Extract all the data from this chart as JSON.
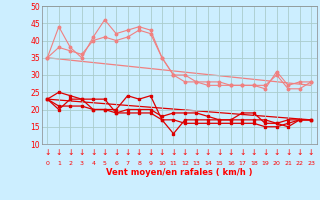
{
  "x": [
    0,
    1,
    2,
    3,
    4,
    5,
    6,
    7,
    8,
    9,
    10,
    11,
    12,
    13,
    14,
    15,
    16,
    17,
    18,
    19,
    20,
    21,
    22,
    23
  ],
  "line1": [
    35,
    44,
    38,
    35,
    41,
    46,
    42,
    43,
    44,
    43,
    35,
    30,
    30,
    28,
    28,
    28,
    27,
    27,
    27,
    26,
    31,
    27,
    28,
    28
  ],
  "line2": [
    35,
    38,
    37,
    36,
    40,
    41,
    40,
    41,
    43,
    42,
    35,
    30,
    28,
    28,
    27,
    27,
    27,
    27,
    27,
    27,
    30,
    26,
    26,
    28
  ],
  "line3": [
    23,
    20,
    23,
    23,
    20,
    20,
    20,
    24,
    23,
    24,
    17,
    13,
    17,
    17,
    17,
    17,
    17,
    19,
    19,
    16,
    16,
    17,
    17,
    17
  ],
  "line4": [
    23,
    25,
    24,
    23,
    23,
    23,
    19,
    20,
    20,
    20,
    18,
    19,
    19,
    19,
    18,
    17,
    17,
    17,
    17,
    17,
    16,
    15,
    17,
    17
  ],
  "line5": [
    23,
    21,
    21,
    21,
    20,
    20,
    19,
    19,
    19,
    19,
    17,
    17,
    16,
    16,
    16,
    16,
    16,
    16,
    16,
    15,
    15,
    16,
    17,
    17
  ],
  "trend1_x": [
    0,
    23
  ],
  "trend1_y": [
    35,
    27
  ],
  "trend2_x": [
    0,
    23
  ],
  "trend2_y": [
    23,
    17
  ],
  "bg_color": "#cceeff",
  "grid_color": "#aacccc",
  "line1_color": "#f08080",
  "line2_color": "#f08080",
  "line3_color": "#dd0000",
  "line4_color": "#dd0000",
  "line5_color": "#dd0000",
  "trend1_color": "#f08080",
  "trend2_color": "#dd0000",
  "xlabel": "Vent moyen/en rafales ( km/h )",
  "ylim": [
    10,
    50
  ],
  "xlim": [
    -0.5,
    23.5
  ],
  "yticks": [
    10,
    15,
    20,
    25,
    30,
    35,
    40,
    45,
    50
  ],
  "xticks": [
    0,
    1,
    2,
    3,
    4,
    5,
    6,
    7,
    8,
    9,
    10,
    11,
    12,
    13,
    14,
    15,
    16,
    17,
    18,
    19,
    20,
    21,
    22,
    23
  ]
}
